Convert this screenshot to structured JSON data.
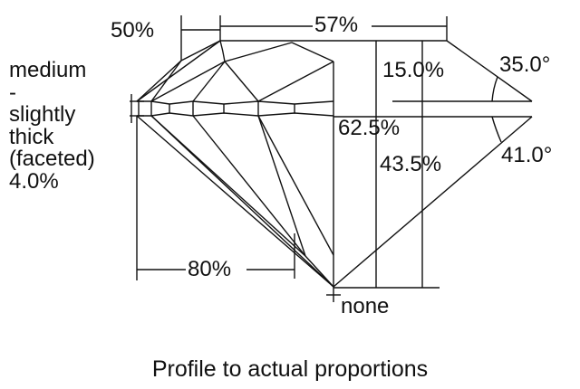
{
  "labels": {
    "crown_height_start": "50%",
    "table": "57%",
    "crown_height": "15.0%",
    "crown_angle": "35.0°",
    "total_depth": "62.5%",
    "pavilion_depth": "43.5%",
    "pavilion_angle": "41.0°",
    "lower_half": "80%",
    "culet": "none"
  },
  "girdle": {
    "lines": [
      "medium",
      "-",
      "slightly",
      "thick",
      "(faceted)",
      "4.0%"
    ]
  },
  "caption": "Profile to actual proportions",
  "colors": {
    "line": "#111111",
    "background": "#ffffff"
  }
}
